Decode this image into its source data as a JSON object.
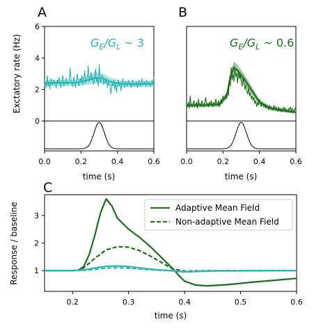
{
  "colors": {
    "teal": "#2ab5b5",
    "green": "#1a6e1a",
    "greenLight": "#7fb07f",
    "tealLight": "#8fd6d6"
  },
  "chart_data": [
    {
      "id": "A",
      "type": "line",
      "panel_label": "A",
      "annotation_main": "G",
      "annotation_sub1": "E",
      "annotation_mid": "/G",
      "annotation_sub2": "L",
      "annotation_tail": " ~ 3",
      "ylabel": "Exctatory rate (Hz)",
      "xlabel": "time (s)",
      "xlim": [
        0,
        0.6
      ],
      "ylim": [
        0,
        6
      ],
      "yticks": [
        "0",
        "2",
        "4",
        "6"
      ],
      "xticks": [
        "0.0",
        "0.2",
        "0.4",
        "0.6"
      ],
      "series": [
        {
          "role": "simulation",
          "x_start": 0.0,
          "x_step": 0.005,
          "values": [
            2.3,
            2.4,
            2.1,
            2.9,
            2.2,
            2.5,
            2.0,
            2.7,
            2.4,
            2.3,
            2.6,
            2.5,
            2.2,
            2.1,
            2.6,
            2.4,
            2.8,
            2.3,
            2.1,
            2.5,
            2.9,
            2.2,
            2.4,
            2.6,
            2.7,
            2.3,
            2.4,
            2.5,
            3.4,
            2.6,
            2.3,
            2.2,
            2.8,
            2.5,
            2.1,
            2.6,
            3.0,
            2.4,
            2.2,
            2.7,
            2.5,
            2.9,
            2.3,
            2.6,
            3.2,
            2.4,
            2.6,
            2.8,
            3.5,
            2.5,
            2.7,
            3.1,
            2.6,
            2.8,
            2.3,
            2.9,
            3.3,
            2.5,
            2.7,
            2.2,
            3.6,
            2.6,
            2.4,
            2.9,
            2.8,
            2.3,
            2.6,
            2.4,
            2.7,
            2.1,
            2.5,
            2.3,
            2.2,
            1.7,
            2.4,
            2.2,
            2.6,
            2.0,
            2.4,
            1.8,
            2.3,
            2.6,
            2.2,
            2.5,
            1.9,
            2.4,
            2.7,
            2.3,
            2.1,
            2.5,
            2.4,
            2.2,
            2.6,
            2.4,
            2.3,
            2.1,
            2.5,
            2.6,
            2.2,
            2.4,
            2.3,
            2.5,
            2.1,
            2.4,
            2.6,
            2.3,
            2.2,
            2.7,
            2.4,
            2.3,
            2.5,
            2.2,
            2.6,
            2.4,
            2.3,
            2.5,
            2.2,
            2.4,
            2.6,
            2.3,
            2.8
          ]
        },
        {
          "role": "mean_field",
          "x": [
            0,
            0.1,
            0.18,
            0.24,
            0.28,
            0.32,
            0.36,
            0.42,
            0.5,
            0.6
          ],
          "values": [
            2.42,
            2.42,
            2.44,
            2.6,
            2.75,
            2.7,
            2.5,
            2.35,
            2.35,
            2.35
          ],
          "band": [
            0.2,
            0.2,
            0.2,
            0.3,
            0.35,
            0.3,
            0.25,
            0.2,
            0.2,
            0.2
          ]
        }
      ]
    },
    {
      "id": "B",
      "type": "line",
      "panel_label": "B",
      "annotation_main": "G",
      "annotation_sub1": "E",
      "annotation_mid": "/G",
      "annotation_sub2": "L",
      "annotation_tail": " ~ 0.6",
      "xlabel": "time (s)",
      "xlim": [
        0,
        0.6
      ],
      "ylim": [
        0,
        6
      ],
      "xticks": [
        "0.0",
        "0.2",
        "0.4",
        "0.6"
      ],
      "series": [
        {
          "role": "simulation",
          "x_start": 0.0,
          "x_step": 0.005,
          "values": [
            1.0,
            0.9,
            1.2,
            0.8,
            1.6,
            1.0,
            0.9,
            1.1,
            1.3,
            0.9,
            1.0,
            1.2,
            0.8,
            1.4,
            1.0,
            1.1,
            0.9,
            1.3,
            1.0,
            0.9,
            1.2,
            1.5,
            1.0,
            1.1,
            0.9,
            1.2,
            1.0,
            1.3,
            1.1,
            0.9,
            1.2,
            1.0,
            1.4,
            1.1,
            1.0,
            1.3,
            0.9,
            1.2,
            1.4,
            1.1,
            1.6,
            1.3,
            1.5,
            1.7,
            1.4,
            2.0,
            1.6,
            2.6,
            2.2,
            3.4,
            2.6,
            3.0,
            2.5,
            3.3,
            2.8,
            3.0,
            2.4,
            3.2,
            2.7,
            2.9,
            2.5,
            2.2,
            2.7,
            2.4,
            2.0,
            2.3,
            1.9,
            1.7,
            2.1,
            1.6,
            1.8,
            1.4,
            1.6,
            1.3,
            1.5,
            1.1,
            1.3,
            0.9,
            1.2,
            1.0,
            1.4,
            1.1,
            0.9,
            1.2,
            1.0,
            0.9,
            1.1,
            0.8,
            1.0,
            0.9,
            0.7,
            1.0,
            0.8,
            0.9,
            0.7,
            0.8,
            1.0,
            0.7,
            0.9,
            0.8,
            0.6,
            0.9,
            0.7,
            0.8,
            0.6,
            0.8,
            0.7,
            0.9,
            0.6,
            0.8,
            0.7,
            0.6,
            0.8,
            0.7,
            0.9,
            0.6,
            0.8,
            0.7,
            0.6,
            0.8,
            0.7
          ]
        },
        {
          "role": "mean_field",
          "x": [
            0,
            0.1,
            0.18,
            0.22,
            0.24,
            0.26,
            0.28,
            0.32,
            0.36,
            0.4,
            0.45,
            0.5,
            0.6
          ],
          "values": [
            1.0,
            1.0,
            1.05,
            1.6,
            2.8,
            3.4,
            3.2,
            2.6,
            1.9,
            1.2,
            0.85,
            0.7,
            0.55
          ],
          "band": [
            0.12,
            0.12,
            0.15,
            0.2,
            0.3,
            0.35,
            0.35,
            0.3,
            0.25,
            0.15,
            0.12,
            0.1,
            0.1
          ]
        }
      ]
    },
    {
      "id": "C",
      "type": "line",
      "panel_label": "C",
      "ylabel": "Response / baseline",
      "xlabel": "time (s)",
      "xlim": [
        0.15,
        0.6
      ],
      "ylim": [
        0.25,
        3.75
      ],
      "xticks": [
        "0.2",
        "0.3",
        "0.4",
        "0.5",
        "0.6"
      ],
      "yticks": [
        "1",
        "2",
        "3"
      ],
      "legend_position": "upper-right",
      "series": [
        {
          "name": "Adaptive Mean Field",
          "color": "green",
          "dash": false,
          "x": [
            0.15,
            0.2,
            0.21,
            0.22,
            0.23,
            0.24,
            0.25,
            0.26,
            0.27,
            0.28,
            0.3,
            0.32,
            0.34,
            0.36,
            0.38,
            0.39,
            0.4,
            0.42,
            0.44,
            0.48,
            0.52,
            0.56,
            0.6
          ],
          "values": [
            1.0,
            1.0,
            1.01,
            1.15,
            1.6,
            2.3,
            3.1,
            3.6,
            3.35,
            2.9,
            2.5,
            2.2,
            1.85,
            1.45,
            1.05,
            0.82,
            0.62,
            0.48,
            0.45,
            0.5,
            0.58,
            0.65,
            0.72
          ]
        },
        {
          "name": "Non-adaptive Mean Field",
          "color": "green",
          "dash": true,
          "x": [
            0.15,
            0.2,
            0.21,
            0.22,
            0.24,
            0.26,
            0.28,
            0.3,
            0.32,
            0.34,
            0.36,
            0.38,
            0.4,
            0.45,
            0.6
          ],
          "values": [
            1.0,
            1.0,
            1.01,
            1.1,
            1.45,
            1.75,
            1.87,
            1.85,
            1.72,
            1.52,
            1.28,
            1.05,
            0.99,
            1.0,
            1.0
          ]
        },
        {
          "color": "teal",
          "dash": false,
          "x": [
            0.15,
            0.2,
            0.22,
            0.24,
            0.26,
            0.28,
            0.3,
            0.32,
            0.34,
            0.36,
            0.38,
            0.4,
            0.45,
            0.6
          ],
          "values": [
            1.0,
            1.0,
            1.02,
            1.1,
            1.16,
            1.17,
            1.15,
            1.1,
            1.05,
            1.02,
            0.99,
            0.95,
            0.99,
            1.0
          ]
        },
        {
          "color": "teal",
          "dash": true,
          "x": [
            0.15,
            0.2,
            0.22,
            0.24,
            0.26,
            0.28,
            0.3,
            0.32,
            0.34,
            0.36,
            0.38,
            0.4,
            0.45,
            0.6
          ],
          "values": [
            1.0,
            1.0,
            1.01,
            1.05,
            1.09,
            1.1,
            1.09,
            1.06,
            1.03,
            1.01,
            1.0,
            0.98,
            1.0,
            1.0
          ]
        }
      ]
    }
  ]
}
